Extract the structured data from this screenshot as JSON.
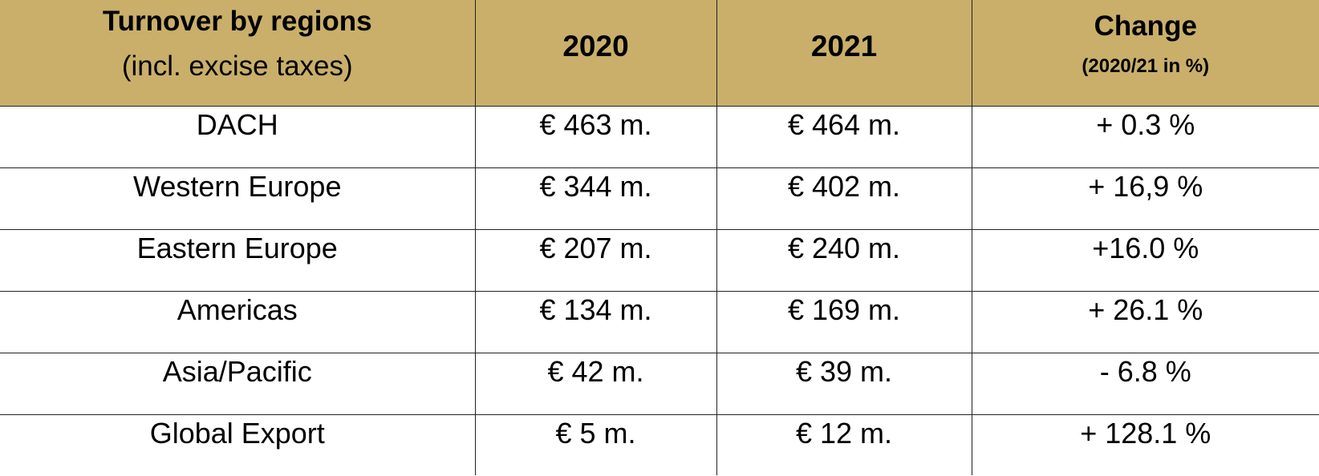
{
  "table": {
    "header": {
      "region_line1": "Turnover by regions",
      "region_line2": "(incl. excise taxes)",
      "year_2020": "2020",
      "year_2021": "2021",
      "change_line1": "Change",
      "change_line2": "(2020/21 in %)"
    },
    "rows": [
      {
        "region": "DACH",
        "v2020": "€ 463 m.",
        "v2021": "€ 464 m.",
        "change": "+ 0.3 %"
      },
      {
        "region": "Western Europe",
        "v2020": "€ 344 m.",
        "v2021": "€ 402 m.",
        "change": "+ 16,9 %"
      },
      {
        "region": "Eastern Europe",
        "v2020": "€ 207 m.",
        "v2021": "€ 240 m.",
        "change": "+16.0 %"
      },
      {
        "region": "Americas",
        "v2020": "€ 134 m.",
        "v2021": "€ 169 m.",
        "change": "+ 26.1 %"
      },
      {
        "region": "Asia/Pacific",
        "v2020": "€ 42 m.",
        "v2021": "€ 39 m.",
        "change": "- 6.8 %"
      },
      {
        "region": "Global Export",
        "v2020": "€ 5 m.",
        "v2021": "€ 12 m.",
        "change": "+ 128.1 %"
      }
    ]
  },
  "colors": {
    "header_background": "#c9af6a",
    "border": "#222222",
    "text": "#000000"
  }
}
